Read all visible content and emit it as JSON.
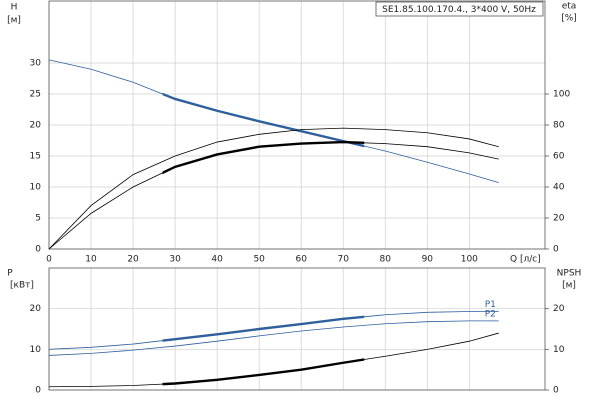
{
  "chart_data": [
    {
      "type": "line",
      "title": "SE1.85.100.170.4., 3*400 V, 50Hz",
      "ylabel": "H",
      "yunit": "[м]",
      "y2label": "eta",
      "y2unit": "[%]",
      "xlabel": "Q [л/с]",
      "x": [
        0,
        10,
        20,
        30,
        40,
        50,
        60,
        70,
        80,
        90,
        100,
        107
      ],
      "xlim": [
        0,
        118
      ],
      "xticks": [
        0,
        10,
        20,
        30,
        40,
        50,
        60,
        70,
        80,
        90,
        100
      ],
      "ylim": [
        0,
        40
      ],
      "yticks": [
        0,
        5,
        10,
        15,
        20,
        25,
        30
      ],
      "y2lim": [
        0,
        160
      ],
      "y2ticks": [
        0,
        20,
        40,
        60,
        80,
        100
      ],
      "grid": true,
      "highlight_range": [
        27,
        75
      ],
      "series": [
        {
          "color": "#2f5f9e",
          "highlight": true,
          "values": [
            30.5,
            29.0,
            26.9,
            24.2,
            22.3,
            20.6,
            19.0,
            17.4,
            15.8,
            14.0,
            12.1,
            10.7
          ]
        },
        {
          "color": "#000000",
          "axis": "y2",
          "highlight": false,
          "values": [
            0,
            28,
            48,
            60,
            69,
            74,
            77,
            78,
            77,
            75,
            71,
            66
          ]
        },
        {
          "color": "#000000",
          "axis": "y2",
          "highlight": true,
          "values": [
            0,
            23,
            40,
            53,
            61,
            66,
            68,
            69,
            68,
            66,
            62,
            58
          ]
        }
      ]
    },
    {
      "type": "line",
      "ylabel": "P",
      "yunit": "[кВт]",
      "y2label": "NPSH",
      "y2unit": "[м]",
      "x": [
        0,
        10,
        20,
        30,
        40,
        50,
        60,
        70,
        80,
        90,
        100,
        107
      ],
      "xlim": [
        0,
        118
      ],
      "xticks": [
        0,
        10,
        20,
        30,
        40,
        50,
        60,
        70,
        80,
        90,
        100
      ],
      "ylim": [
        0,
        30
      ],
      "yticks": [
        0,
        10,
        20
      ],
      "y2lim": [
        0,
        30
      ],
      "y2ticks": [
        0,
        10,
        20
      ],
      "grid": true,
      "highlight_range": [
        27,
        75
      ],
      "series": [
        {
          "name": "P1",
          "color": "#2f5f9e",
          "highlight": true,
          "values": [
            10,
            10.5,
            11.3,
            12.5,
            13.7,
            15,
            16.2,
            17.5,
            18.5,
            19.1,
            19.3,
            19.3
          ]
        },
        {
          "name": "P2",
          "color": "#2f5f9e",
          "highlight": false,
          "values": [
            8.5,
            9.0,
            9.8,
            10.8,
            12,
            13.3,
            14.5,
            15.5,
            16.3,
            16.8,
            17,
            17
          ]
        },
        {
          "color": "#000000",
          "axis": "y2",
          "highlight": true,
          "values": [
            0.8,
            0.9,
            1.1,
            1.6,
            2.5,
            3.7,
            5.0,
            6.7,
            8.3,
            10,
            12,
            14
          ]
        }
      ]
    }
  ]
}
